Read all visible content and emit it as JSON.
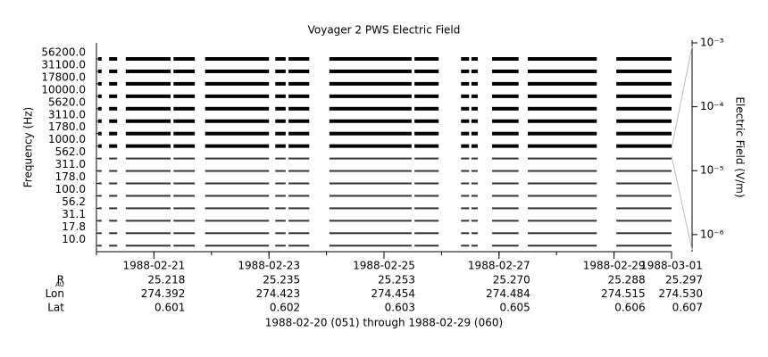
{
  "chart_data": {
    "type": "strip",
    "title": "Voyager 2 PWS Electric Field",
    "ylabel": "Frequency (Hz)",
    "categories": [
      "56200.0",
      "31100.0",
      "17800.0",
      "10000.0",
      "5620.0",
      "3110.0",
      "1780.0",
      "1000.0",
      "562.0",
      "311.0",
      "178.0",
      "100.0",
      "56.2",
      "31.1",
      "17.8",
      "10.0"
    ],
    "xlim": [
      0,
      10
    ],
    "xticks": [
      {
        "value": 1,
        "label": "1988-02-21"
      },
      {
        "value": 3,
        "label": "1988-02-23"
      },
      {
        "value": 5,
        "label": "1988-02-25"
      },
      {
        "value": 7,
        "label": "1988-02-27"
      },
      {
        "value": 9,
        "label": "1988-02-29"
      },
      {
        "value": 10,
        "label": "1988-03-01"
      }
    ],
    "xminor": [
      0,
      1,
      2,
      3,
      4,
      5,
      6,
      7,
      8,
      9,
      10
    ],
    "segments": [
      [
        0.03,
        0.09
      ],
      [
        0.22,
        0.36
      ],
      [
        0.51,
        1.29
      ],
      [
        1.34,
        1.71
      ],
      [
        1.89,
        3.0
      ],
      [
        3.11,
        3.29
      ],
      [
        3.34,
        3.7
      ],
      [
        4.05,
        5.48
      ],
      [
        5.53,
        5.95
      ],
      [
        6.34,
        6.48
      ],
      [
        6.52,
        6.63
      ],
      [
        6.88,
        7.34
      ],
      [
        7.5,
        8.7
      ],
      [
        9.04,
        10.0
      ]
    ],
    "color": "#000000",
    "colorbar": {
      "label": "Electric Field (V/m)",
      "log": true,
      "ylim": [
        5.4e-07,
        0.001
      ],
      "yticks": [
        {
          "value": 0.001,
          "label": "10⁻³"
        },
        {
          "value": 0.0001,
          "label": "10⁻⁴"
        },
        {
          "value": 1e-05,
          "label": "10⁻⁵"
        },
        {
          "value": 1e-06,
          "label": "10⁻⁶"
        }
      ]
    },
    "ephemeris": {
      "rows": [
        {
          "name": "R",
          "sub": "AU",
          "values": [
            "25.218",
            "25.235",
            "25.253",
            "25.270",
            "25.288",
            "25.297"
          ]
        },
        {
          "name": "Lon",
          "values": [
            "274.392",
            "274.423",
            "274.454",
            "274.484",
            "274.515",
            "274.530"
          ]
        },
        {
          "name": "Lat",
          "values": [
            "0.601",
            "0.602",
            "0.603",
            "0.605",
            "0.606",
            "0.607"
          ]
        }
      ]
    },
    "footer": "1988-02-20 (051) through 1988-02-29 (060)"
  }
}
